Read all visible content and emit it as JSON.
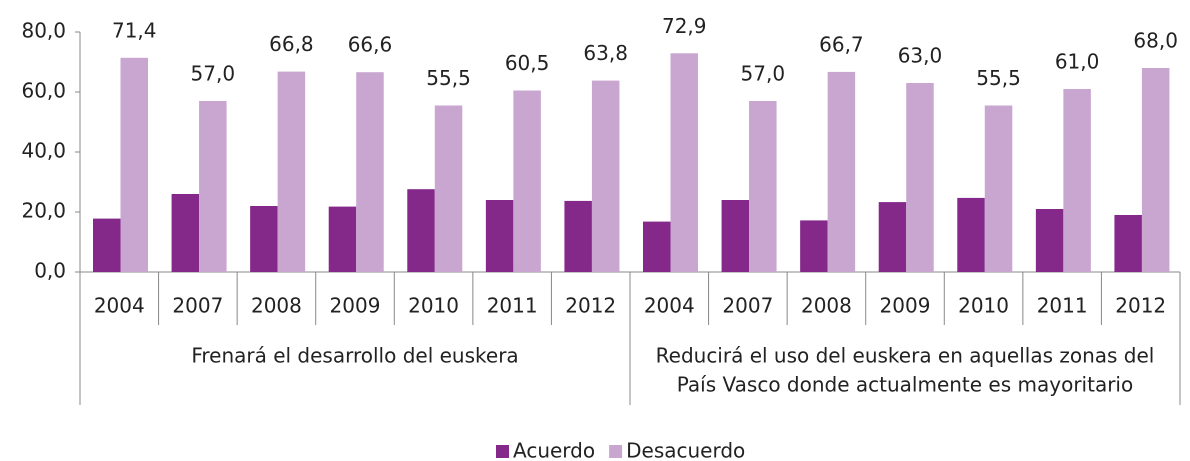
{
  "chart_data": {
    "type": "bar",
    "groups": [
      {
        "label": [
          "Frenará el desarrollo del euskera"
        ],
        "categories": [
          "2004",
          "2007",
          "2008",
          "2009",
          "2010",
          "2011",
          "2012"
        ]
      },
      {
        "label": [
          "Reducirá el uso del euskera en aquellas zonas del",
          "País Vasco donde actualmente es mayoritario"
        ],
        "categories": [
          "2004",
          "2007",
          "2008",
          "2009",
          "2010",
          "2011",
          "2012"
        ]
      }
    ],
    "series": [
      {
        "name": "Acuerdo",
        "color": "#84288a",
        "values": [
          17.8,
          26.0,
          22.0,
          21.8,
          27.6,
          24.0,
          23.7,
          16.8,
          24.0,
          17.2,
          23.3,
          24.7,
          21.0,
          19.0
        ]
      },
      {
        "name": "Desacuerdo",
        "color": "#c9a6d0",
        "values": [
          71.4,
          57.0,
          66.8,
          66.6,
          55.5,
          60.5,
          63.8,
          72.9,
          57.0,
          66.7,
          63.0,
          55.5,
          61.0,
          68.0
        ],
        "value_labels": [
          "71,4",
          "57,0",
          "66,8",
          "66,6",
          "55,5",
          "60,5",
          "63,8",
          "72,9",
          "57,0",
          "66,7",
          "63,0",
          "55,5",
          "61,0",
          "68,0"
        ]
      }
    ],
    "ylim": [
      0,
      80
    ],
    "yticks": [
      {
        "value": 0,
        "label": "0,0"
      },
      {
        "value": 20,
        "label": "20,0"
      },
      {
        "value": 40,
        "label": "40,0"
      },
      {
        "value": 60,
        "label": "60,0"
      },
      {
        "value": 80,
        "label": "80,0"
      }
    ],
    "grid": false,
    "legend": "bottom"
  }
}
